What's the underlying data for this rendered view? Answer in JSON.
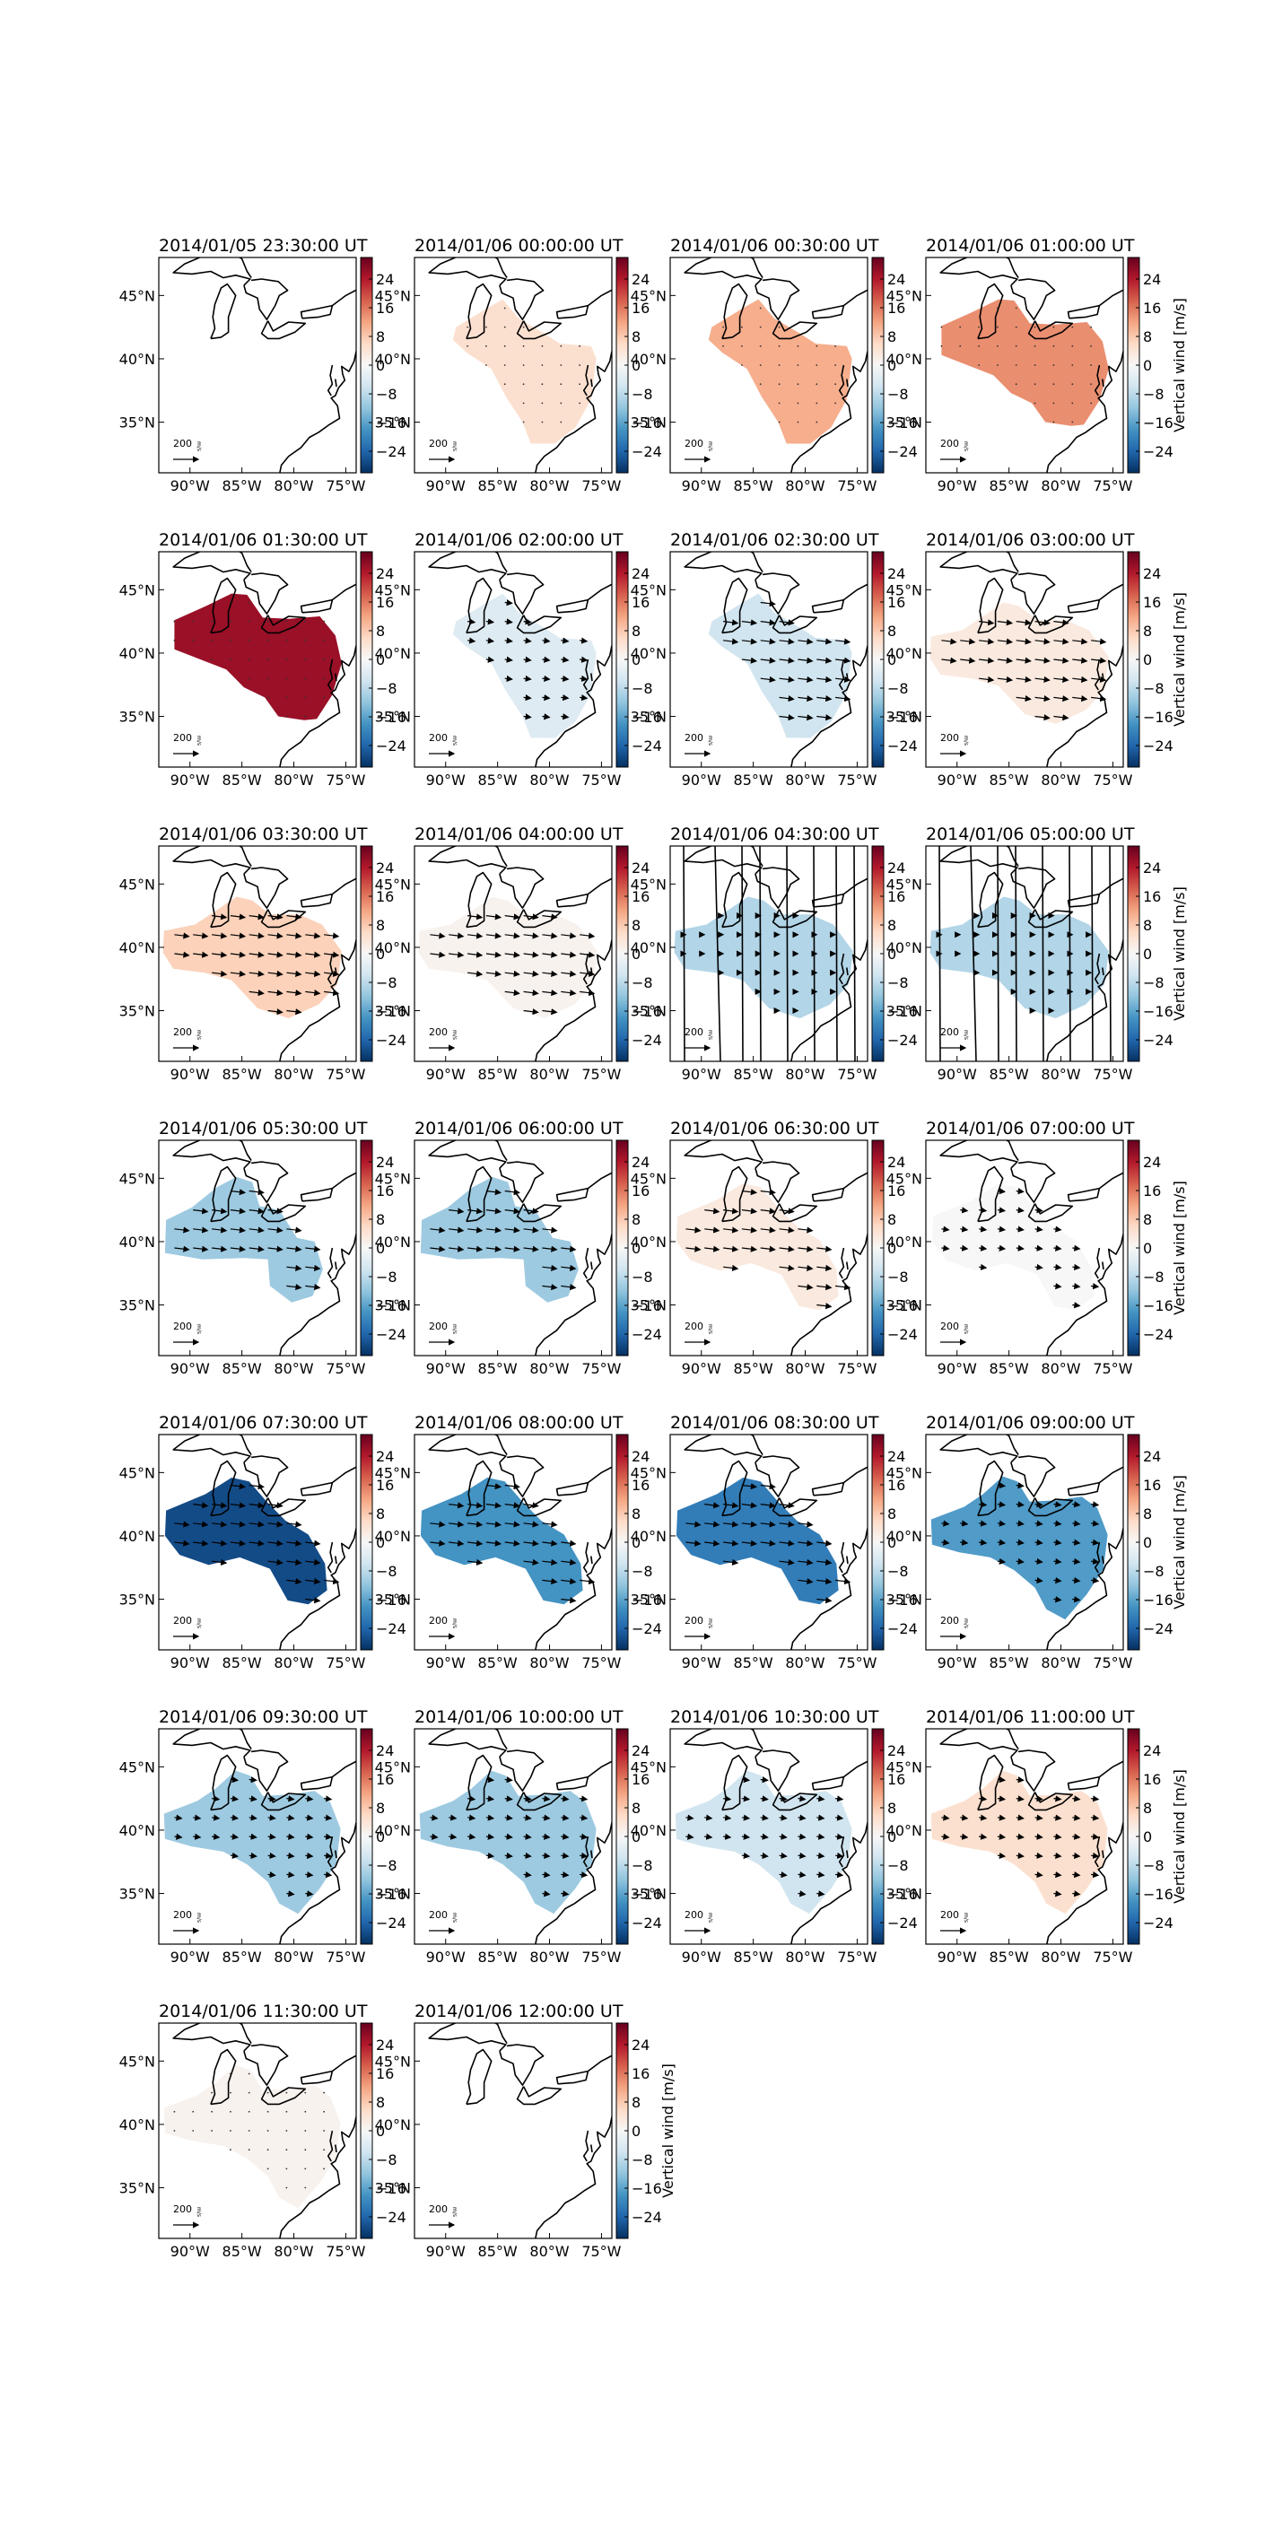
{
  "figure": {
    "colorbar_label": "Vertical wind [m/s]",
    "colorbar_ticks": [
      24,
      16,
      8,
      0,
      -8,
      -16,
      -24
    ],
    "colorbar_range": [
      -30,
      30
    ],
    "colorscale": [
      "#053061",
      "#2166ac",
      "#4393c3",
      "#92c5de",
      "#d1e5f0",
      "#f7f7f7",
      "#fddbc7",
      "#f4a582",
      "#d6604d",
      "#b2182b",
      "#67001f"
    ],
    "lat_ticks": [
      "45°N",
      "40°N",
      "35°N"
    ],
    "lon_ticks": [
      "90°W",
      "85°W",
      "80°W",
      "75°W"
    ],
    "scale_label": "200",
    "scale_unit": "m/s"
  },
  "chart_data": {
    "type": "heatmap",
    "description_kind": "map panels",
    "lon_range": [
      -93,
      -74
    ],
    "lat_range": [
      31,
      48
    ],
    "panels": [
      {
        "title": "2014/01/05 23:30:00 UT",
        "value": null,
        "region": "none",
        "arrows": "none",
        "show_cbar_label": false
      },
      {
        "title": "2014/01/06 00:00:00 UT",
        "value": 5,
        "region": "A",
        "arrows": "dots",
        "show_cbar_label": false
      },
      {
        "title": "2014/01/06 00:30:00 UT",
        "value": 11,
        "region": "A",
        "arrows": "dots",
        "show_cbar_label": false
      },
      {
        "title": "2014/01/06 01:00:00 UT",
        "value": 14,
        "region": "B",
        "arrows": "dots",
        "show_cbar_label": true
      },
      {
        "title": "2014/01/06 01:30:00 UT",
        "value": 26,
        "region": "B",
        "arrows": "dots",
        "show_cbar_label": false
      },
      {
        "title": "2014/01/06 02:00:00 UT",
        "value": -4,
        "region": "A",
        "arrows": "small",
        "show_cbar_label": false
      },
      {
        "title": "2014/01/06 02:30:00 UT",
        "value": -6,
        "region": "A",
        "arrows": "medium",
        "show_cbar_label": false
      },
      {
        "title": "2014/01/06 03:00:00 UT",
        "value": 3,
        "region": "C",
        "arrows": "medium",
        "show_cbar_label": true
      },
      {
        "title": "2014/01/06 03:30:00 UT",
        "value": 7,
        "region": "C",
        "arrows": "medium",
        "show_cbar_label": false
      },
      {
        "title": "2014/01/06 04:00:00 UT",
        "value": 1,
        "region": "C",
        "arrows": "medium",
        "show_cbar_label": false
      },
      {
        "title": "2014/01/06 04:30:00 UT",
        "value": -9,
        "region": "C",
        "arrows": "long",
        "show_cbar_label": false
      },
      {
        "title": "2014/01/06 05:00:00 UT",
        "value": -9,
        "region": "C",
        "arrows": "long",
        "show_cbar_label": true
      },
      {
        "title": "2014/01/06 05:30:00 UT",
        "value": -11,
        "region": "D",
        "arrows": "medium",
        "show_cbar_label": false
      },
      {
        "title": "2014/01/06 06:00:00 UT",
        "value": -11,
        "region": "D",
        "arrows": "medium",
        "show_cbar_label": false
      },
      {
        "title": "2014/01/06 06:30:00 UT",
        "value": 3,
        "region": "E",
        "arrows": "medium",
        "show_cbar_label": false
      },
      {
        "title": "2014/01/06 07:00:00 UT",
        "value": 0,
        "region": "E",
        "arrows": "small",
        "show_cbar_label": true
      },
      {
        "title": "2014/01/06 07:30:00 UT",
        "value": -27,
        "region": "E",
        "arrows": "medium",
        "show_cbar_label": false
      },
      {
        "title": "2014/01/06 08:00:00 UT",
        "value": -18,
        "region": "E",
        "arrows": "medium",
        "show_cbar_label": false
      },
      {
        "title": "2014/01/06 08:30:00 UT",
        "value": -21,
        "region": "E",
        "arrows": "medium",
        "show_cbar_label": false
      },
      {
        "title": "2014/01/06 09:00:00 UT",
        "value": -17,
        "region": "F",
        "arrows": "small",
        "show_cbar_label": true
      },
      {
        "title": "2014/01/06 09:30:00 UT",
        "value": -11,
        "region": "F",
        "arrows": "small",
        "show_cbar_label": false
      },
      {
        "title": "2014/01/06 10:00:00 UT",
        "value": -11,
        "region": "F",
        "arrows": "small",
        "show_cbar_label": false
      },
      {
        "title": "2014/01/06 10:30:00 UT",
        "value": -6,
        "region": "F",
        "arrows": "small",
        "show_cbar_label": false
      },
      {
        "title": "2014/01/06 11:00:00 UT",
        "value": 5,
        "region": "F",
        "arrows": "small",
        "show_cbar_label": true
      },
      {
        "title": "2014/01/06 11:30:00 UT",
        "value": 1,
        "region": "F",
        "arrows": "dots",
        "show_cbar_label": false
      },
      {
        "title": "2014/01/06 12:00:00 UT",
        "value": null,
        "region": "none",
        "arrows": "none",
        "show_cbar_label": true
      }
    ]
  }
}
